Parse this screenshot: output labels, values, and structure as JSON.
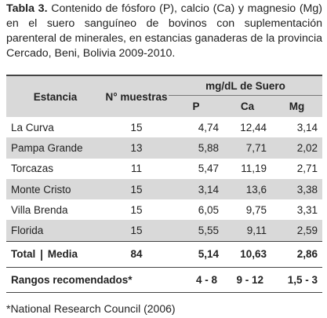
{
  "caption": {
    "label": "Tabla 3.",
    "text": "Contenido de fósforo (P), calcio (Ca) y magnesio (Mg) en el suero sanguíneo de bovinos con suplementación parenteral de minerales, en estancias ganaderas de la provincia Cercado, Beni, Bolivia 2009-2010."
  },
  "table": {
    "headers": {
      "estancia": "Estancia",
      "n": "N° muestras",
      "group": "mg/dL de Suero",
      "p": "P",
      "ca": "Ca",
      "mg": "Mg"
    },
    "rows": [
      [
        "La Curva",
        "15",
        "4,74",
        "12,44",
        "3,14"
      ],
      [
        "Pampa Grande",
        "13",
        "5,88",
        "7,71",
        "2,02"
      ],
      [
        "Torcazas",
        "11",
        "5,47",
        "11,19",
        "2,71"
      ],
      [
        "Monte Cristo",
        "15",
        "3,14",
        "13,6",
        "3,38"
      ],
      [
        "Villa Brenda",
        "15",
        "6,05",
        "9,75",
        "3,31"
      ],
      [
        "Florida",
        "15",
        "5,55",
        "9,11",
        "2,59"
      ]
    ],
    "total": {
      "label": "Total",
      "label2": "Media",
      "n": "84",
      "p": "5,14",
      "ca": "10,63",
      "mg": "2,86"
    },
    "ranges": {
      "label": "Rangos recomendados*",
      "p": "4 - 8",
      "ca": "9 - 12",
      "mg": "1,5 - 3"
    }
  },
  "footnote": "*National Research Council (2006)"
}
